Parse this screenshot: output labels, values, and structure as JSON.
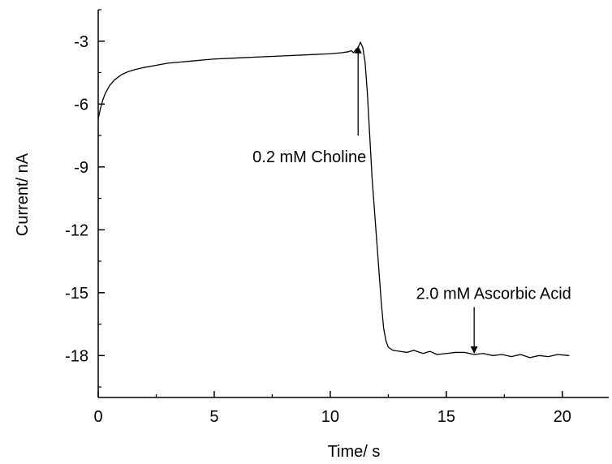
{
  "chart_data": {
    "type": "line",
    "title": "",
    "xlabel": "Time/ s",
    "ylabel": "Current/ nA",
    "xlim": [
      0,
      22
    ],
    "ylim": [
      -20,
      -1.5
    ],
    "x_ticks": [
      0,
      5,
      10,
      15,
      20
    ],
    "y_ticks": [
      -3,
      -6,
      -9,
      -12,
      -15,
      -18
    ],
    "grid": false,
    "legend": "none",
    "line_color": "#000000",
    "series": [
      {
        "x": [
          0.0,
          0.1,
          0.2,
          0.3,
          0.5,
          0.7,
          1.0,
          1.3,
          1.6,
          2.0,
          2.5,
          3.0,
          3.5,
          4.0,
          5.0,
          6.0,
          7.0,
          8.0,
          9.0,
          10.0,
          10.5,
          10.8,
          10.9,
          11.0,
          11.1,
          11.2,
          11.3,
          11.4,
          11.5,
          11.6,
          11.7,
          11.8,
          11.9,
          12.0,
          12.1,
          12.2,
          12.3,
          12.4,
          12.5,
          12.7,
          13.0,
          13.3,
          13.6,
          14.0,
          14.3,
          14.6,
          15.0,
          15.4,
          15.8,
          16.2,
          16.6,
          17.0,
          17.4,
          17.8,
          18.2,
          18.6,
          19.0,
          19.4,
          19.8,
          20.3
        ],
        "y": [
          -6.7,
          -6.2,
          -5.8,
          -5.5,
          -5.1,
          -4.85,
          -4.6,
          -4.45,
          -4.35,
          -4.25,
          -4.15,
          -4.05,
          -4.0,
          -3.95,
          -3.85,
          -3.8,
          -3.75,
          -3.7,
          -3.65,
          -3.6,
          -3.55,
          -3.5,
          -3.45,
          -3.55,
          -3.4,
          -3.3,
          -3.05,
          -3.3,
          -4.0,
          -5.5,
          -7.5,
          -9.5,
          -11.0,
          -12.5,
          -14.0,
          -15.5,
          -16.7,
          -17.3,
          -17.6,
          -17.75,
          -17.8,
          -17.85,
          -17.75,
          -17.9,
          -17.8,
          -17.95,
          -17.9,
          -17.85,
          -17.85,
          -17.95,
          -17.9,
          -18.0,
          -17.95,
          -18.05,
          -17.95,
          -18.1,
          -18.0,
          -18.05,
          -17.95,
          -18.0
        ]
      }
    ],
    "annotations": [
      {
        "text": "0.2 mM Choline",
        "x": 11.2,
        "y": -3.25,
        "arrow": "up"
      },
      {
        "text": "2.0 mM Ascorbic Acid",
        "x": 16.2,
        "y": -17.85,
        "arrow": "down"
      }
    ]
  }
}
